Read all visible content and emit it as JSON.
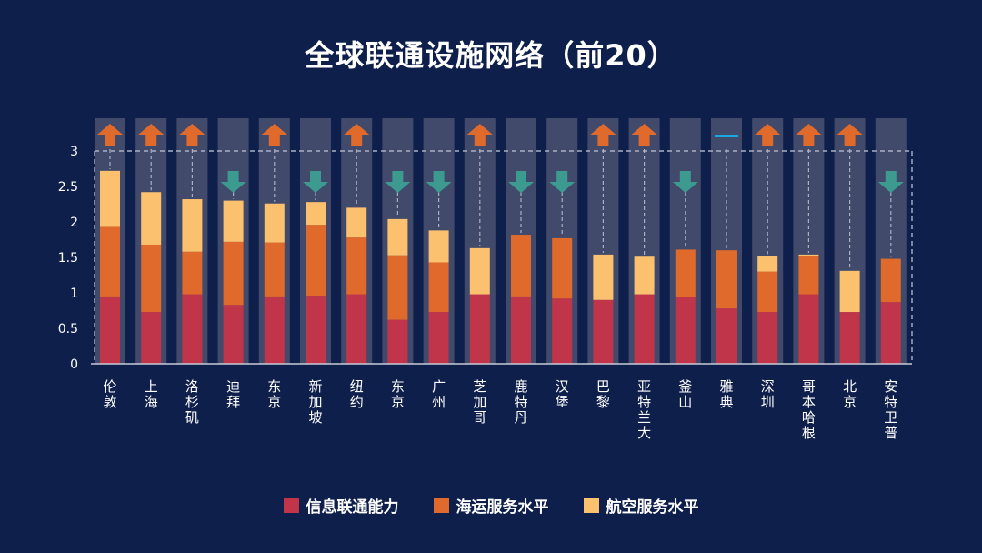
{
  "page": {
    "title": "全球联通设施网络（前20）"
  },
  "chart_data": {
    "type": "bar",
    "stacked": true,
    "title": "全球联通设施网络（前20）",
    "xlabel": "",
    "ylabel": "",
    "ylim": [
      0,
      3
    ],
    "yticks": [
      "0",
      "0.5",
      "1",
      "1.5",
      "2",
      "2.5",
      "3"
    ],
    "grid": false,
    "legend_position": "bottom",
    "categories": [
      "伦敦",
      "上海",
      "洛杉矶",
      "迪拜",
      "东京",
      "新加坡",
      "纽约",
      "东京",
      "广州",
      "芝加哥",
      "鹿特丹",
      "汉堡",
      "巴黎",
      "亚特兰大",
      "釜山",
      "雅典",
      "深圳",
      "哥本哈根",
      "北京",
      "安特卫普"
    ],
    "series": [
      {
        "name": "信息联通能力",
        "color": "#c0354a",
        "values": [
          0.95,
          0.73,
          0.98,
          0.83,
          0.95,
          0.96,
          0.98,
          0.62,
          0.73,
          0.98,
          0.95,
          0.92,
          0.9,
          0.98,
          0.94,
          0.78,
          0.73,
          0.98,
          0.73,
          0.87
        ]
      },
      {
        "name": "海运服务水平",
        "color": "#e06a2c",
        "values": [
          0.98,
          0.95,
          0.6,
          0.89,
          0.76,
          1.0,
          0.8,
          0.91,
          0.7,
          0.0,
          0.87,
          0.85,
          0.0,
          0.0,
          0.67,
          0.82,
          0.57,
          0.54,
          0.0,
          0.61
        ]
      },
      {
        "name": "航空服务水平",
        "color": "#fcc16e",
        "values": [
          0.79,
          0.74,
          0.74,
          0.58,
          0.55,
          0.32,
          0.42,
          0.51,
          0.45,
          0.65,
          0.0,
          0.0,
          0.64,
          0.53,
          0.0,
          0.0,
          0.22,
          0.02,
          0.58,
          0.0
        ]
      }
    ],
    "trend": [
      "up",
      "up",
      "up",
      "down",
      "up",
      "down",
      "up",
      "down",
      "down",
      "up",
      "down",
      "down",
      "up",
      "up",
      "down",
      "flat",
      "up",
      "up",
      "up",
      "down"
    ],
    "trend_colors": {
      "up": "#e06a2c",
      "down": "#3d9a90",
      "flat": "#19a9e0"
    }
  }
}
